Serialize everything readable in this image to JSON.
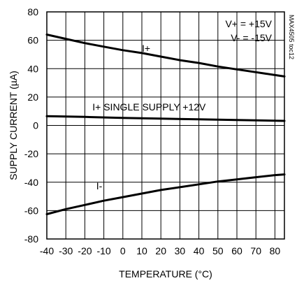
{
  "chart_data": {
    "type": "line",
    "xlabel": "TEMPERATURE (°C)",
    "ylabel": "SUPPLY CURRENT (µA)",
    "xlim": [
      -40,
      85
    ],
    "ylim": [
      -80,
      80
    ],
    "x_ticks": [
      "-40",
      "-30",
      "-20",
      "-10",
      "0",
      "10",
      "20",
      "30",
      "40",
      "50",
      "60",
      "70",
      "80"
    ],
    "y_ticks": [
      "80",
      "60",
      "40",
      "20",
      "0",
      "-20",
      "-40",
      "-60",
      "-80"
    ],
    "grid": true,
    "legend": {
      "lines": [
        "V+ = +15V",
        "V- = -15V"
      ],
      "position": "top-right"
    },
    "figure_code": "MAX4505 toc12",
    "series": [
      {
        "name": "I+",
        "x": [
          -40,
          -30,
          -20,
          -10,
          0,
          10,
          20,
          30,
          40,
          50,
          60,
          70,
          80,
          85
        ],
        "y": [
          64,
          61,
          58,
          55.5,
          53,
          51,
          48.5,
          46,
          44,
          41.5,
          39.5,
          37.5,
          35.5,
          34.5
        ]
      },
      {
        "name": "I+ SINGLE SUPPLY +12V",
        "x": [
          -40,
          -20,
          0,
          20,
          40,
          60,
          85
        ],
        "y": [
          6.5,
          6,
          5.3,
          4.8,
          4.3,
          3.8,
          3.2
        ]
      },
      {
        "name": "I-",
        "x": [
          -40,
          -30,
          -20,
          -10,
          0,
          10,
          20,
          30,
          40,
          50,
          60,
          70,
          80,
          85
        ],
        "y": [
          -62.5,
          -59,
          -56,
          -53,
          -50.5,
          -48,
          -45.5,
          -43.5,
          -41.5,
          -39.5,
          -38,
          -36.5,
          -35,
          -34.5
        ]
      }
    ],
    "annotations": [
      {
        "text": "I+",
        "x": 10,
        "y": 52
      },
      {
        "text": "I+ SINGLE SUPPLY +12V",
        "x": -16,
        "y": 10.5
      },
      {
        "text": "I-",
        "x": -14,
        "y": -45
      }
    ]
  }
}
